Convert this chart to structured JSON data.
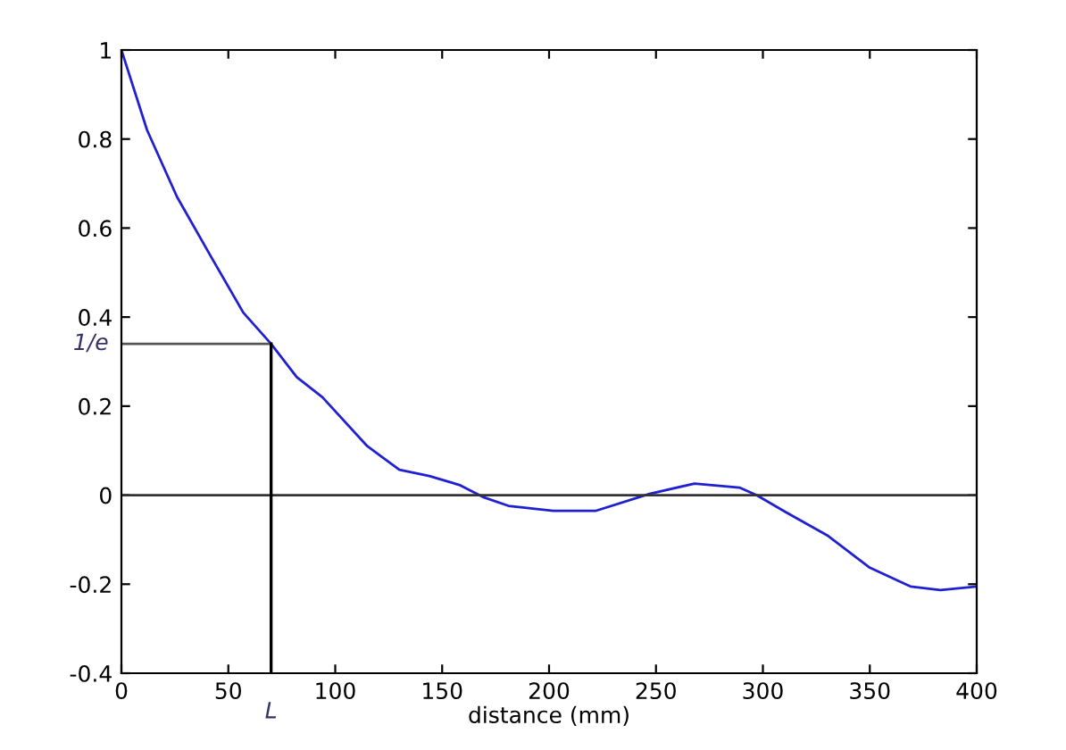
{
  "chart_data": {
    "type": "line",
    "xlabel": "distance (mm)",
    "x": [
      0,
      12,
      26,
      42,
      57,
      70,
      82,
      94,
      115,
      130,
      144,
      158,
      169,
      181,
      202,
      222,
      247,
      268,
      289,
      297,
      311,
      330,
      350,
      369,
      383,
      400
    ],
    "series": [
      {
        "color": "#2020d0",
        "values": [
          1.0,
          0.82,
          0.67,
          0.535,
          0.41,
          0.34,
          0.265,
          0.22,
          0.11,
          0.057,
          0.043,
          0.023,
          -0.004,
          -0.024,
          -0.035,
          -0.035,
          0.003,
          0.026,
          0.017,
          0.0,
          -0.039,
          -0.09,
          -0.163,
          -0.205,
          -0.213,
          -0.205
        ]
      }
    ],
    "xlim": [
      0,
      400
    ],
    "xticks": [
      0,
      50,
      100,
      150,
      200,
      250,
      300,
      350,
      400
    ],
    "ylim": [
      -0.4,
      1
    ],
    "yticks": [
      -0.4,
      -0.2,
      0,
      0.2,
      0.4,
      0.6,
      0.8,
      1
    ],
    "ref_lines": [
      {
        "axis": "y",
        "value": 0.34,
        "label": "1/e",
        "color": "#555555"
      },
      {
        "axis": "x",
        "value": 70,
        "label": "L",
        "color": "#000000"
      },
      {
        "axis": "y",
        "value": 0,
        "color": "#333333"
      }
    ],
    "grid": false,
    "marker": "none",
    "line_style": "solid"
  }
}
